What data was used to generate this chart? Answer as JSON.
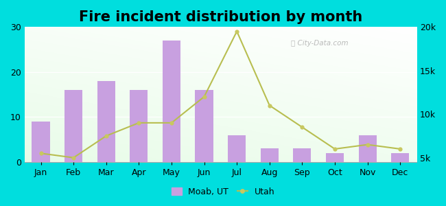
{
  "title": "Fire incident distribution by month",
  "months": [
    "Jan",
    "Feb",
    "Mar",
    "Apr",
    "May",
    "Jun",
    "Jul",
    "Aug",
    "Sep",
    "Oct",
    "Nov",
    "Dec"
  ],
  "moab_values": [
    9,
    16,
    18,
    16,
    27,
    16,
    6,
    3,
    3,
    2,
    6,
    2
  ],
  "utah_values": [
    5500,
    5000,
    7500,
    9000,
    9000,
    12000,
    19500,
    11000,
    8500,
    6000,
    6500,
    6000
  ],
  "bar_color": "#c8a0e0",
  "line_color": "#b8be50",
  "line_marker_color": "#c8c860",
  "outer_bg": "#00dede",
  "left_ylim": [
    0,
    30
  ],
  "right_ylim": [
    4500,
    20000
  ],
  "left_yticks": [
    0,
    10,
    20,
    30
  ],
  "right_yticks": [
    5000,
    10000,
    15000,
    20000
  ],
  "right_yticklabels": [
    "5k",
    "10k",
    "15k",
    "20k"
  ],
  "legend_moab": "Moab, UT",
  "legend_utah": "Utah",
  "watermark": "ⓘ City-Data.com",
  "title_fontsize": 15
}
